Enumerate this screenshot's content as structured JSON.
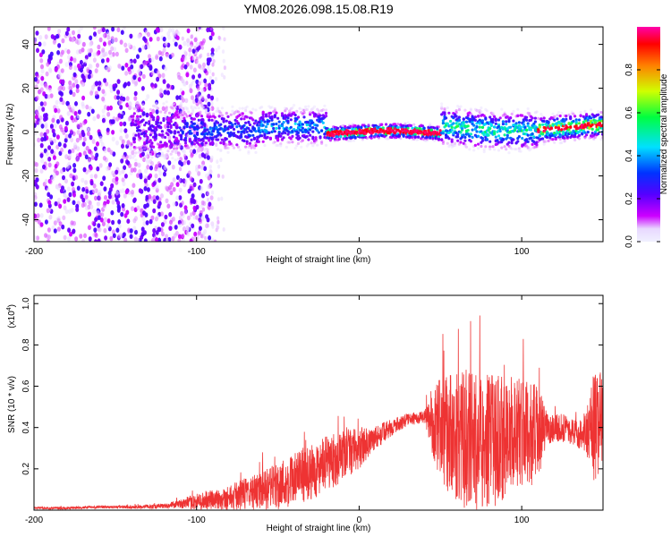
{
  "title": "YM08.2026.098.15.08.R19",
  "colors": {
    "snr_line": "#ee3333",
    "colormap": [
      "#f0f0ff",
      "#ffffff",
      "#cc00ff",
      "#5500ff",
      "#0033ff",
      "#00e0ff",
      "#00ff40",
      "#d0ff00",
      "#ff8000",
      "#ff0000",
      "#ff00aa"
    ]
  },
  "chart_data": [
    {
      "type": "heatmap",
      "title": "YM08.2026.098.15.08.R19",
      "xlabel": "Height of straight line (km)",
      "ylabel": "Frequency (Hz)",
      "xlim": [
        -200,
        150
      ],
      "ylim": [
        -50,
        48
      ],
      "x_ticks": [
        -200,
        -100,
        0,
        100
      ],
      "x_tick_labels": [
        "-200",
        "-100",
        "0",
        "100"
      ],
      "y_ticks": [
        -40,
        -20,
        0,
        20,
        40
      ],
      "y_tick_labels": [
        "-40",
        "-20",
        "0",
        "20",
        "40"
      ],
      "description_bands": [
        {
          "x_range": [
            -200,
            -110
          ],
          "freq_range": [
            -50,
            48
          ],
          "level": "low-moderate",
          "pattern": "scattered"
        },
        {
          "x_range": [
            -110,
            -20
          ],
          "freq_range": [
            -15,
            15
          ],
          "level": "moderate",
          "pattern": "band"
        },
        {
          "x_range": [
            -20,
            50
          ],
          "freq_range": [
            -3,
            3
          ],
          "level": "high",
          "pattern": "narrow ridge near 0 Hz"
        },
        {
          "x_range": [
            50,
            150
          ],
          "freq_range": [
            -8,
            12
          ],
          "level": "moderate-high",
          "pattern": "band"
        }
      ],
      "colorbar": {
        "label": "Normalized spectral amplitude",
        "range": [
          0.0,
          1.0
        ],
        "ticks": [
          0.0,
          0.2,
          0.4,
          0.6,
          0.8
        ],
        "tick_labels": [
          "0.0",
          "0.2",
          "0.4",
          "0.6",
          "0.8"
        ]
      }
    },
    {
      "type": "line",
      "xlabel": "Height of straight line (km)",
      "ylabel": "SNR (10 * v/v)",
      "y_multiplier_label": "(x10",
      "y_multiplier_exp": "4",
      "y_multiplier_close": ")",
      "xlim": [
        -200,
        150
      ],
      "ylim": [
        0,
        1.04
      ],
      "x_ticks": [
        -200,
        -100,
        0,
        100
      ],
      "x_tick_labels": [
        "-200",
        "-100",
        "0",
        "100"
      ],
      "y_ticks": [
        0.2,
        0.4,
        0.6,
        0.8,
        1.0
      ],
      "y_tick_labels": [
        "0.2",
        "0.4",
        "0.6",
        "0.8",
        "1.0"
      ],
      "series": [
        {
          "name": "SNR",
          "color": "#ee3333",
          "envelope_x": [
            -200,
            -180,
            -160,
            -140,
            -120,
            -110,
            -100,
            -90,
            -80,
            -70,
            -60,
            -50,
            -40,
            -30,
            -20,
            -10,
            0,
            10,
            20,
            30,
            40,
            45,
            50,
            55,
            60,
            65,
            70,
            75,
            80,
            85,
            90,
            95,
            100,
            105,
            110,
            115,
            120,
            125,
            130,
            135,
            140,
            145,
            150
          ],
          "envelope_base": [
            0.01,
            0.01,
            0.015,
            0.015,
            0.02,
            0.03,
            0.04,
            0.05,
            0.06,
            0.08,
            0.09,
            0.12,
            0.15,
            0.18,
            0.22,
            0.26,
            0.3,
            0.35,
            0.4,
            0.44,
            0.45,
            0.42,
            0.4,
            0.38,
            0.36,
            0.34,
            0.33,
            0.33,
            0.33,
            0.34,
            0.36,
            0.38,
            0.38,
            0.36,
            0.37,
            0.4,
            0.4,
            0.4,
            0.38,
            0.37,
            0.38,
            0.4,
            0.45
          ],
          "envelope_spread": [
            0.005,
            0.006,
            0.006,
            0.008,
            0.012,
            0.02,
            0.04,
            0.05,
            0.06,
            0.08,
            0.09,
            0.12,
            0.13,
            0.13,
            0.14,
            0.12,
            0.1,
            0.06,
            0.04,
            0.03,
            0.03,
            0.15,
            0.25,
            0.3,
            0.32,
            0.33,
            0.34,
            0.33,
            0.33,
            0.32,
            0.3,
            0.28,
            0.26,
            0.25,
            0.24,
            0.08,
            0.07,
            0.07,
            0.06,
            0.07,
            0.12,
            0.3,
            0.2
          ]
        }
      ]
    }
  ]
}
